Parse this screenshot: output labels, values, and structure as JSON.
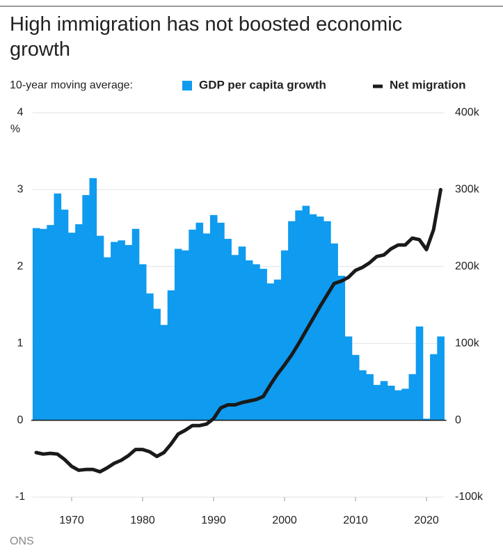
{
  "chart_data": {
    "type": "bar_line",
    "title": "High immigration has not boosted economic growth",
    "legend_intro": "10-year moving average:",
    "y_unit": "%",
    "source": "ONS",
    "x": [
      1965,
      1966,
      1967,
      1968,
      1969,
      1970,
      1971,
      1972,
      1973,
      1974,
      1975,
      1976,
      1977,
      1978,
      1979,
      1980,
      1981,
      1982,
      1983,
      1984,
      1985,
      1986,
      1987,
      1988,
      1989,
      1990,
      1991,
      1992,
      1993,
      1994,
      1995,
      1996,
      1997,
      1998,
      1999,
      2000,
      2001,
      2002,
      2003,
      2004,
      2005,
      2006,
      2007,
      2008,
      2009,
      2010,
      2011,
      2012,
      2013,
      2014,
      2015,
      2016,
      2017,
      2018,
      2019,
      2020,
      2021,
      2022
    ],
    "series": [
      {
        "name": "GDP per capita growth",
        "type": "bar",
        "color": "#0f9bef",
        "values": [
          2.5,
          2.49,
          2.54,
          2.95,
          2.74,
          2.44,
          2.55,
          2.93,
          3.15,
          2.4,
          2.12,
          2.32,
          2.34,
          2.28,
          2.49,
          2.03,
          1.65,
          1.45,
          1.24,
          1.69,
          2.23,
          2.21,
          2.48,
          2.57,
          2.43,
          2.67,
          2.57,
          2.36,
          2.15,
          2.26,
          2.08,
          2.03,
          1.97,
          1.78,
          1.83,
          2.21,
          2.59,
          2.73,
          2.79,
          2.68,
          2.65,
          2.59,
          2.3,
          1.88,
          1.09,
          0.85,
          0.65,
          0.6,
          0.46,
          0.51,
          0.45,
          0.39,
          0.41,
          0.6,
          1.22,
          0.02,
          0.86,
          1.09
        ]
      },
      {
        "name": "Net migration",
        "type": "line",
        "axis": "y2",
        "color": "#1a1a1a",
        "values": [
          -42000,
          -44000,
          -43000,
          -44000,
          -51000,
          -60000,
          -65000,
          -64000,
          -64000,
          -67000,
          -62000,
          -56000,
          -52000,
          -46000,
          -38000,
          -38000,
          -41000,
          -47000,
          -42000,
          -31000,
          -18000,
          -13000,
          -7000,
          -7000,
          -5000,
          2000,
          16000,
          20000,
          20000,
          23000,
          25000,
          27000,
          31000,
          46000,
          60000,
          72000,
          85000,
          100000,
          116000,
          132000,
          148000,
          163000,
          178000,
          181000,
          186000,
          195000,
          199000,
          205000,
          213000,
          215000,
          223000,
          228000,
          228000,
          237000,
          235000,
          222000,
          248000,
          300000
        ]
      }
    ],
    "xlim": [
      1964.5,
      2022.5
    ],
    "xticks": [
      1970,
      1980,
      1990,
      2000,
      2010,
      2020
    ],
    "ylim": [
      -1,
      4
    ],
    "yticks": [
      -1,
      0,
      1,
      2,
      3,
      4
    ],
    "y2lim": [
      -100000,
      400000
    ],
    "y2ticks": [
      {
        "value": -100000,
        "label": "-100k"
      },
      0,
      {
        "value": 100000,
        "label": "100k"
      },
      {
        "value": 200000,
        "label": "200k"
      },
      {
        "value": 300000,
        "label": "300k"
      },
      {
        "value": 400000,
        "label": "400k"
      }
    ],
    "grid": true
  }
}
